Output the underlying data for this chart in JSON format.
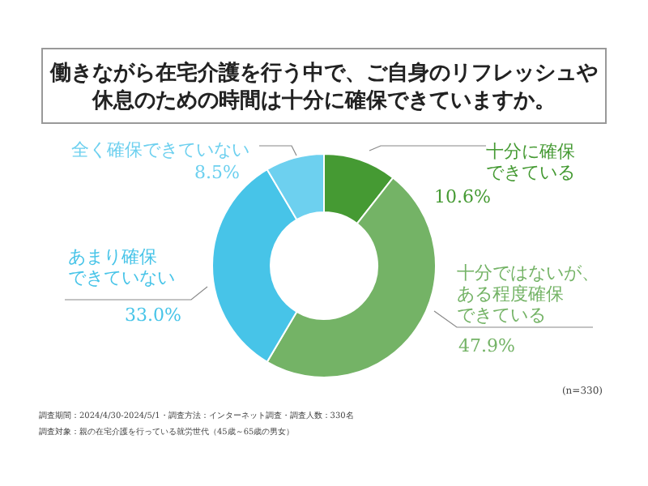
{
  "chart_data": {
    "type": "donut",
    "title": "働きながら在宅介護を行う中で、ご自身のリフレッシュや休息のための時間は十分に確保できていますか。",
    "categories": [
      "十分に確保できている",
      "十分ではないが、ある程度確保できている",
      "あまり確保できていない",
      "全く確保できていない"
    ],
    "values": [
      10.6,
      47.9,
      33.0,
      8.5
    ],
    "value_labels": [
      "10.6%",
      "47.9%",
      "33.0%",
      "8.5%"
    ],
    "colors": [
      "#459a33",
      "#74b366",
      "#47c4e8",
      "#6dd0ef"
    ],
    "annotations": [
      "(n=330)",
      "調査期間：2024/4/30-2024/5/1・調査方法：インターネット調査・調査人数：330名",
      "調査対象：親の在宅介護を行っている就労世代（45歳～65歳の男女）"
    ]
  }
}
